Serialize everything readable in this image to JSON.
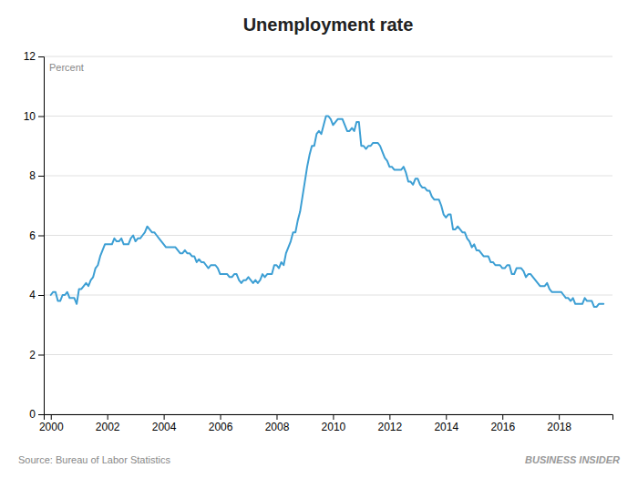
{
  "chart_data": {
    "type": "line",
    "title": "Unemployment rate",
    "y_label": "Percent",
    "annotations": [
      "Source: Bureau of Labor Statistics",
      "BUSINESS INSIDER"
    ],
    "color": "#3d9fd4",
    "grid": true,
    "xlim": [
      1999.75,
      2019.9
    ],
    "xticks": [
      2000,
      2002,
      2004,
      2006,
      2008,
      2010,
      2012,
      2014,
      2016,
      2018
    ],
    "ylim": [
      0,
      12
    ],
    "yticks": [
      0,
      2,
      4,
      6,
      8,
      10,
      12
    ],
    "x": [
      2000.0,
      2000.083,
      2000.167,
      2000.25,
      2000.333,
      2000.417,
      2000.5,
      2000.583,
      2000.667,
      2000.75,
      2000.833,
      2000.917,
      2001.0,
      2001.083,
      2001.167,
      2001.25,
      2001.333,
      2001.417,
      2001.5,
      2001.583,
      2001.667,
      2001.75,
      2001.833,
      2001.917,
      2002.0,
      2002.083,
      2002.167,
      2002.25,
      2002.333,
      2002.417,
      2002.5,
      2002.583,
      2002.667,
      2002.75,
      2002.833,
      2002.917,
      2003.0,
      2003.083,
      2003.167,
      2003.25,
      2003.333,
      2003.417,
      2003.5,
      2003.583,
      2003.667,
      2003.75,
      2003.833,
      2003.917,
      2004.0,
      2004.083,
      2004.167,
      2004.25,
      2004.333,
      2004.417,
      2004.5,
      2004.583,
      2004.667,
      2004.75,
      2004.833,
      2004.917,
      2005.0,
      2005.083,
      2005.167,
      2005.25,
      2005.333,
      2005.417,
      2005.5,
      2005.583,
      2005.667,
      2005.75,
      2005.833,
      2005.917,
      2006.0,
      2006.083,
      2006.167,
      2006.25,
      2006.333,
      2006.417,
      2006.5,
      2006.583,
      2006.667,
      2006.75,
      2006.833,
      2006.917,
      2007.0,
      2007.083,
      2007.167,
      2007.25,
      2007.333,
      2007.417,
      2007.5,
      2007.583,
      2007.667,
      2007.75,
      2007.833,
      2007.917,
      2008.0,
      2008.083,
      2008.167,
      2008.25,
      2008.333,
      2008.417,
      2008.5,
      2008.583,
      2008.667,
      2008.75,
      2008.833,
      2008.917,
      2009.0,
      2009.083,
      2009.167,
      2009.25,
      2009.333,
      2009.417,
      2009.5,
      2009.583,
      2009.667,
      2009.75,
      2009.833,
      2009.917,
      2010.0,
      2010.083,
      2010.167,
      2010.25,
      2010.333,
      2010.417,
      2010.5,
      2010.583,
      2010.667,
      2010.75,
      2010.833,
      2010.917,
      2011.0,
      2011.083,
      2011.167,
      2011.25,
      2011.333,
      2011.417,
      2011.5,
      2011.583,
      2011.667,
      2011.75,
      2011.833,
      2011.917,
      2012.0,
      2012.083,
      2012.167,
      2012.25,
      2012.333,
      2012.417,
      2012.5,
      2012.583,
      2012.667,
      2012.75,
      2012.833,
      2012.917,
      2013.0,
      2013.083,
      2013.167,
      2013.25,
      2013.333,
      2013.417,
      2013.5,
      2013.583,
      2013.667,
      2013.75,
      2013.833,
      2013.917,
      2014.0,
      2014.083,
      2014.167,
      2014.25,
      2014.333,
      2014.417,
      2014.5,
      2014.583,
      2014.667,
      2014.75,
      2014.833,
      2014.917,
      2015.0,
      2015.083,
      2015.167,
      2015.25,
      2015.333,
      2015.417,
      2015.5,
      2015.583,
      2015.667,
      2015.75,
      2015.833,
      2015.917,
      2016.0,
      2016.083,
      2016.167,
      2016.25,
      2016.333,
      2016.417,
      2016.5,
      2016.583,
      2016.667,
      2016.75,
      2016.833,
      2016.917,
      2017.0,
      2017.083,
      2017.167,
      2017.25,
      2017.333,
      2017.417,
      2017.5,
      2017.583,
      2017.667,
      2017.75,
      2017.833,
      2017.917,
      2018.0,
      2018.083,
      2018.167,
      2018.25,
      2018.333,
      2018.417,
      2018.5,
      2018.583,
      2018.667,
      2018.75,
      2018.833,
      2018.917,
      2019.0,
      2019.083,
      2019.167,
      2019.25,
      2019.333,
      2019.417,
      2019.5,
      2019.583
    ],
    "values": [
      4.0,
      4.1,
      4.1,
      3.8,
      3.8,
      4.0,
      4.0,
      4.1,
      3.9,
      3.9,
      3.9,
      3.7,
      4.2,
      4.2,
      4.3,
      4.4,
      4.3,
      4.5,
      4.6,
      4.9,
      5.0,
      5.3,
      5.5,
      5.7,
      5.7,
      5.7,
      5.7,
      5.9,
      5.8,
      5.8,
      5.9,
      5.7,
      5.7,
      5.7,
      5.9,
      6.0,
      5.8,
      5.9,
      5.9,
      6.0,
      6.1,
      6.3,
      6.2,
      6.1,
      6.1,
      6.0,
      5.9,
      5.8,
      5.7,
      5.6,
      5.6,
      5.6,
      5.6,
      5.6,
      5.5,
      5.4,
      5.4,
      5.5,
      5.4,
      5.4,
      5.3,
      5.3,
      5.1,
      5.2,
      5.1,
      5.1,
      5.0,
      4.9,
      5.0,
      5.0,
      5.0,
      4.9,
      4.7,
      4.7,
      4.7,
      4.7,
      4.6,
      4.6,
      4.7,
      4.7,
      4.5,
      4.4,
      4.5,
      4.5,
      4.6,
      4.5,
      4.4,
      4.5,
      4.4,
      4.5,
      4.7,
      4.6,
      4.7,
      4.7,
      4.7,
      5.0,
      5.0,
      4.9,
      5.1,
      5.0,
      5.4,
      5.6,
      5.8,
      6.1,
      6.1,
      6.5,
      6.8,
      7.3,
      7.8,
      8.3,
      8.7,
      9.0,
      9.0,
      9.4,
      9.5,
      9.4,
      9.7,
      10.0,
      10.0,
      9.9,
      9.7,
      9.8,
      9.9,
      9.9,
      9.9,
      9.7,
      9.5,
      9.5,
      9.6,
      9.5,
      9.8,
      9.8,
      9.0,
      9.0,
      8.9,
      9.0,
      9.0,
      9.1,
      9.1,
      9.1,
      9.0,
      8.8,
      8.6,
      8.5,
      8.3,
      8.3,
      8.2,
      8.2,
      8.2,
      8.2,
      8.3,
      8.1,
      7.8,
      7.8,
      7.7,
      7.9,
      7.9,
      7.7,
      7.6,
      7.6,
      7.5,
      7.5,
      7.3,
      7.2,
      7.2,
      7.2,
      7.0,
      6.7,
      6.6,
      6.7,
      6.7,
      6.2,
      6.2,
      6.3,
      6.2,
      6.1,
      6.1,
      5.9,
      5.8,
      5.6,
      5.7,
      5.5,
      5.5,
      5.4,
      5.3,
      5.3,
      5.3,
      5.1,
      5.1,
      5.0,
      5.0,
      5.0,
      4.9,
      4.9,
      5.0,
      5.0,
      4.7,
      4.7,
      4.9,
      4.9,
      4.9,
      4.8,
      4.6,
      4.7,
      4.7,
      4.6,
      4.5,
      4.4,
      4.3,
      4.3,
      4.3,
      4.4,
      4.2,
      4.1,
      4.1,
      4.1,
      4.1,
      4.1,
      4.0,
      3.9,
      3.9,
      3.8,
      3.9,
      3.7,
      3.7,
      3.7,
      3.7,
      3.9,
      3.8,
      3.8,
      3.8,
      3.6,
      3.6,
      3.7,
      3.7,
      3.7
    ]
  }
}
